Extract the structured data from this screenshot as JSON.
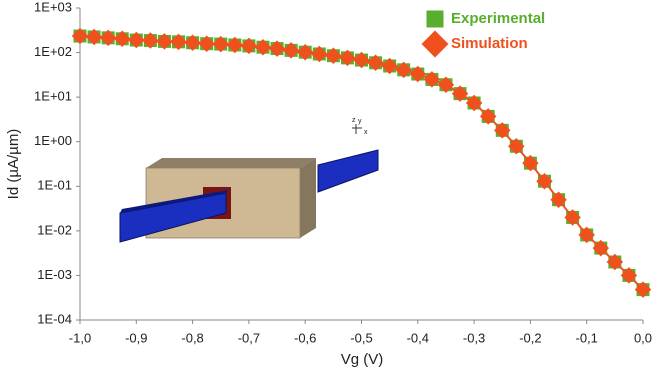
{
  "chart_data": {
    "type": "scatter",
    "x_label": "Vg (V)",
    "y_label": "Id (µA/µm)",
    "log_y": true,
    "grid": false,
    "legend": "upper right",
    "inset_axis_labels": [
      "z",
      "y",
      "x"
    ],
    "xlim": [
      -1.0,
      0.0
    ],
    "ylim": [
      0.0001,
      1000
    ],
    "xticks": [
      {
        "value": -1.0,
        "label": "-1,0"
      },
      {
        "value": -0.9,
        "label": "-0,9"
      },
      {
        "value": -0.8,
        "label": "-0,8"
      },
      {
        "value": -0.7,
        "label": "-0,7"
      },
      {
        "value": -0.6,
        "label": "-0,6"
      },
      {
        "value": -0.5,
        "label": "-0,5"
      },
      {
        "value": -0.4,
        "label": "-0,4"
      },
      {
        "value": -0.3,
        "label": "-0,3"
      },
      {
        "value": -0.2,
        "label": "-0,2"
      },
      {
        "value": -0.1,
        "label": "-0,1"
      },
      {
        "value": 0.0,
        "label": "0,0"
      }
    ],
    "yticks": [
      {
        "value": 0.0001,
        "label": "1E-04"
      },
      {
        "value": 0.001,
        "label": "1E-03"
      },
      {
        "value": 0.01,
        "label": "1E-02"
      },
      {
        "value": 0.1,
        "label": "1E-01"
      },
      {
        "value": 1,
        "label": "1E+00"
      },
      {
        "value": 10,
        "label": "1E+01"
      },
      {
        "value": 100,
        "label": "1E+02"
      },
      {
        "value": 1000,
        "label": "1E+03"
      }
    ],
    "x": [
      -1.0,
      -0.975,
      -0.95,
      -0.925,
      -0.9,
      -0.875,
      -0.85,
      -0.825,
      -0.8,
      -0.775,
      -0.75,
      -0.725,
      -0.7,
      -0.675,
      -0.65,
      -0.625,
      -0.6,
      -0.575,
      -0.55,
      -0.525,
      -0.5,
      -0.475,
      -0.45,
      -0.425,
      -0.4,
      -0.375,
      -0.35,
      -0.325,
      -0.3,
      -0.275,
      -0.25,
      -0.225,
      -0.2,
      -0.175,
      -0.15,
      -0.125,
      -0.1,
      -0.075,
      -0.05,
      -0.025,
      0.0
    ],
    "series": [
      {
        "name": "Experimental",
        "color": "#5aae2e",
        "marker": "square",
        "values": [
          235,
          224,
          214,
          204,
          191,
          186,
          178,
          174,
          166,
          158,
          155,
          148,
          141,
          132,
          123,
          112,
          102,
          93,
          85,
          76,
          68,
          59,
          50,
          41,
          33,
          25,
          19,
          12,
          7.4,
          3.7,
          1.8,
          0.79,
          0.33,
          0.13,
          0.05,
          0.02,
          0.0081,
          0.0041,
          0.002,
          0.001,
          0.00048
        ]
      },
      {
        "name": "Simulation",
        "color": "#f0501e",
        "marker": "diamond",
        "values": [
          235,
          224,
          214,
          204,
          191,
          186,
          178,
          174,
          166,
          158,
          155,
          148,
          141,
          132,
          123,
          112,
          102,
          93,
          85,
          76,
          68,
          59,
          50,
          41,
          33,
          25,
          19,
          12,
          7.4,
          3.7,
          1.8,
          0.79,
          0.33,
          0.13,
          0.05,
          0.02,
          0.0081,
          0.0041,
          0.002,
          0.001,
          0.00048
        ]
      }
    ]
  }
}
